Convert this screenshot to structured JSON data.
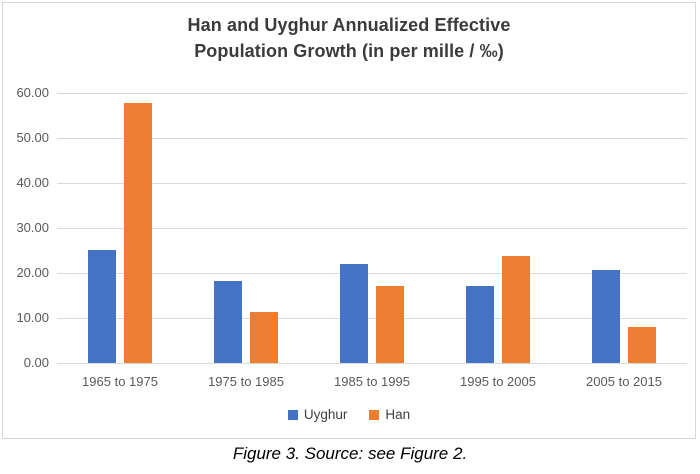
{
  "figure": {
    "title_line1": "Han and Uyghur Annualized Effective",
    "title_line2": "Population Growth (in per mille / ‰)",
    "caption": "Figure 3. Source: see Figure 2."
  },
  "chart_data": {
    "type": "bar",
    "title": "Han and Uyghur Annualized Effective Population Growth (in per mille / ‰)",
    "categories": [
      "1965 to 1975",
      "1975 to 1985",
      "1985 to 1995",
      "1995 to 2005",
      "2005 to 2015"
    ],
    "series": [
      {
        "name": "Uyghur",
        "color": "#4472C4",
        "values": [
          25.2,
          18.2,
          22.0,
          17.1,
          20.7
        ]
      },
      {
        "name": "Han",
        "color": "#ED7D31",
        "values": [
          57.7,
          11.3,
          17.1,
          23.8,
          8.0
        ]
      }
    ],
    "xlabel": "",
    "ylabel": "",
    "ylim": [
      0,
      60
    ],
    "ytick_labels": [
      "60.00",
      "50.00",
      "40.00",
      "30.00",
      "20.00",
      "10.00",
      "0.00"
    ],
    "grid": "horizontal",
    "gridline_color": "#d9d9d9",
    "legend_position": "bottom"
  }
}
